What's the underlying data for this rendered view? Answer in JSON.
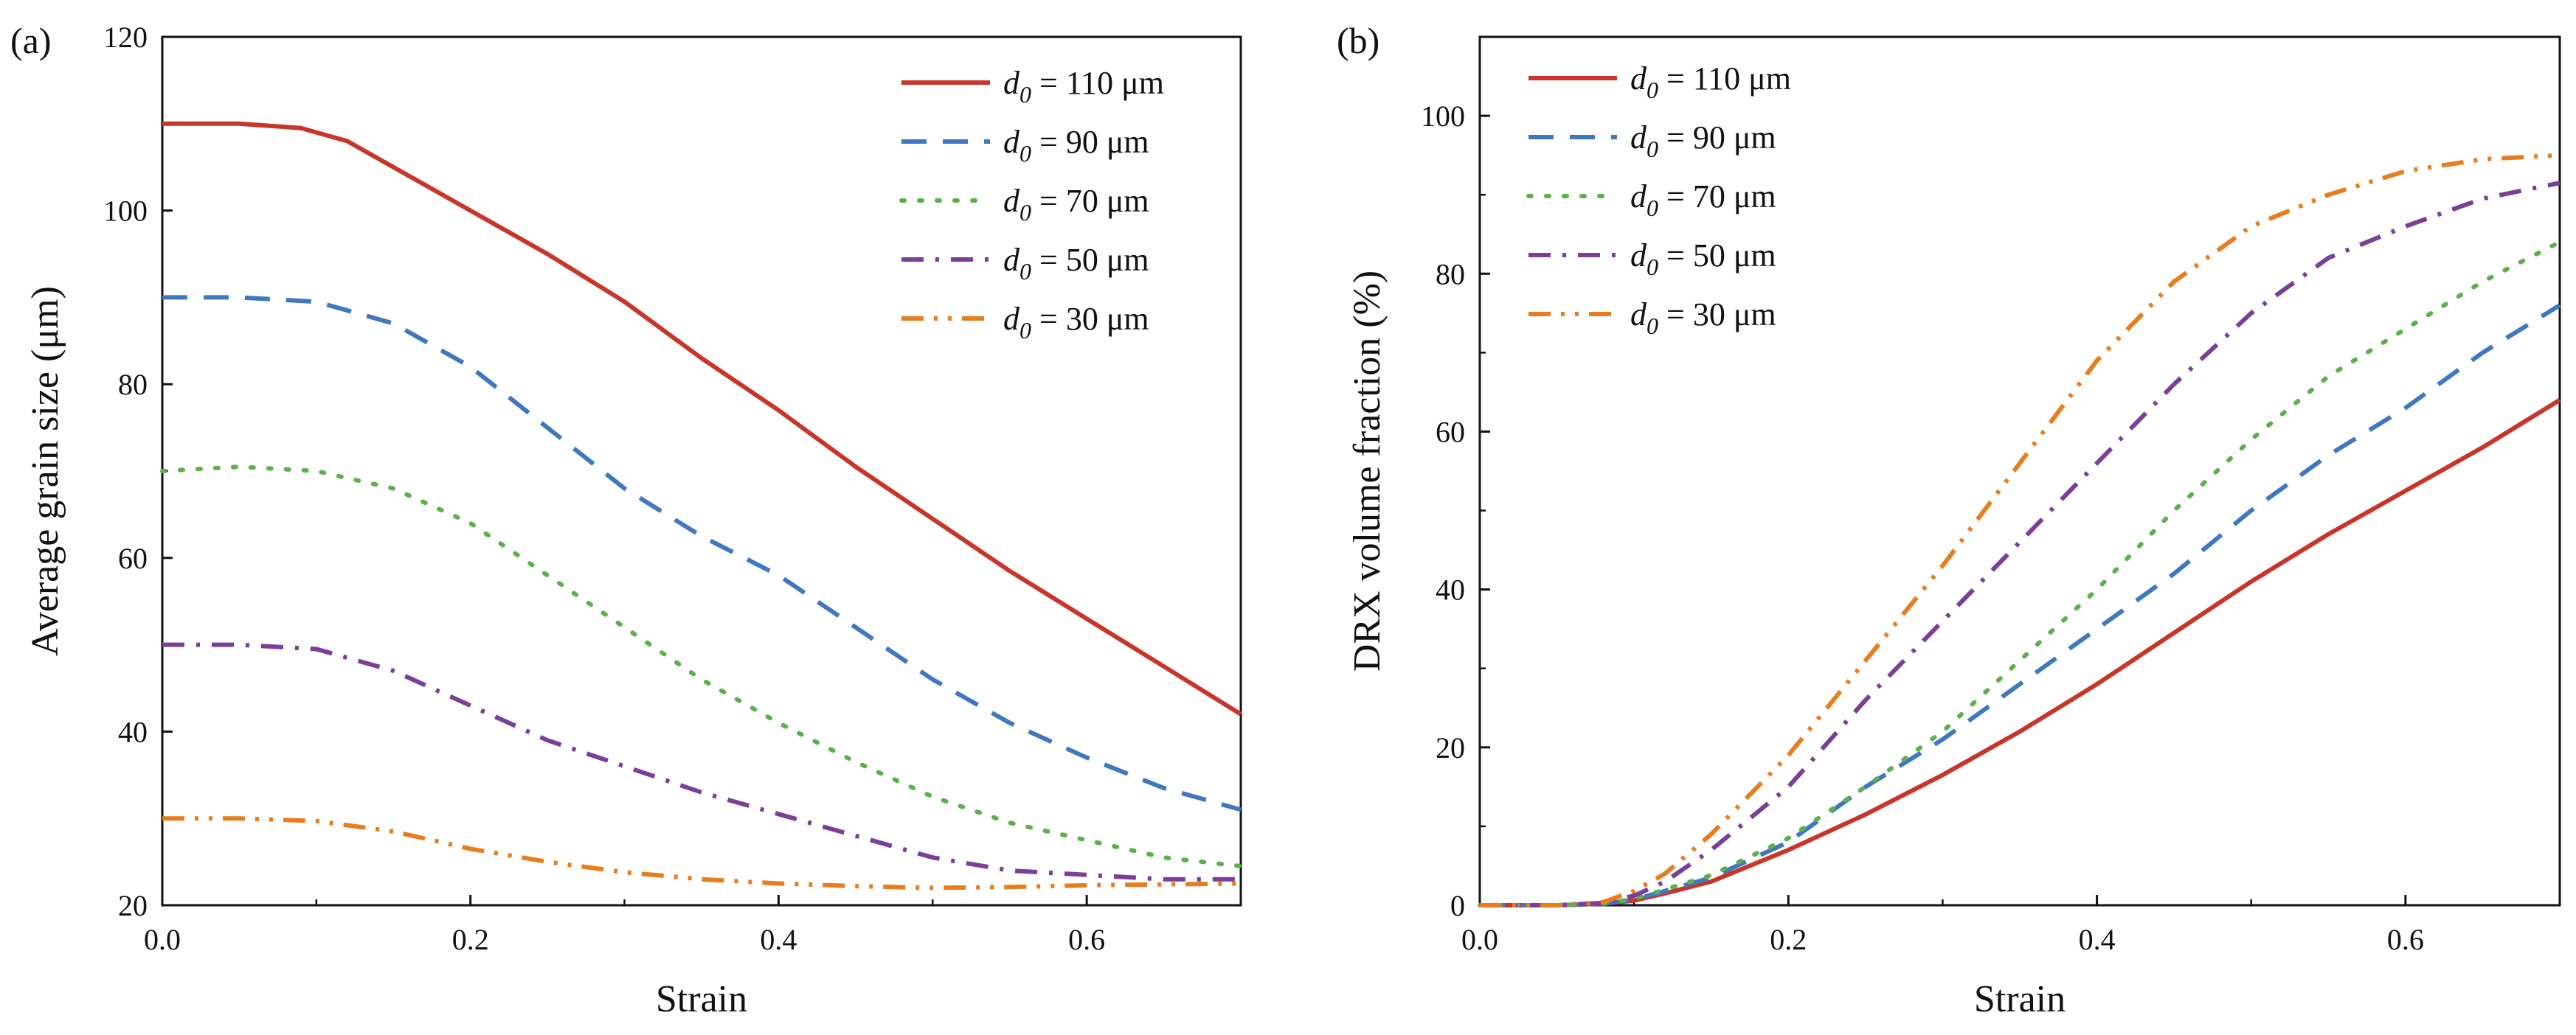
{
  "chart_data": [
    {
      "panel_label": "(a)",
      "type": "line",
      "xlabel": "Strain",
      "ylabel": "Average grain size (μm)",
      "xlim": [
        0,
        0.7
      ],
      "ylim": [
        20,
        120
      ],
      "x_ticks": [
        "0.0",
        "0.2",
        "0.4",
        "0.6"
      ],
      "y_ticks": [
        "20",
        "40",
        "60",
        "80",
        "100",
        "120"
      ],
      "legend_position": "top-right",
      "series": [
        {
          "name": "d0 = 110 μm",
          "legend_sym": "d",
          "legend_sub": "0",
          "legend_rest": " = 110 μm",
          "color": "#c8352b",
          "dash": "solid",
          "x": [
            0.0,
            0.05,
            0.09,
            0.12,
            0.15,
            0.2,
            0.25,
            0.3,
            0.35,
            0.4,
            0.45,
            0.5,
            0.55,
            0.6,
            0.65,
            0.7
          ],
          "y": [
            110,
            110,
            109.5,
            108,
            105,
            100,
            95,
            89.5,
            83,
            77,
            70.5,
            64.5,
            58.5,
            53,
            47.5,
            42
          ]
        },
        {
          "name": "d0 = 90 μm",
          "legend_sym": "d",
          "legend_sub": "0",
          "legend_rest": " = 90 μm",
          "color": "#3f78bf",
          "dash": "dash",
          "x": [
            0.0,
            0.05,
            0.1,
            0.15,
            0.2,
            0.25,
            0.3,
            0.35,
            0.4,
            0.45,
            0.5,
            0.55,
            0.6,
            0.65,
            0.7
          ],
          "y": [
            90,
            90,
            89.5,
            87,
            82,
            75,
            68,
            62.5,
            58,
            52,
            46,
            41,
            37,
            33.5,
            31
          ]
        },
        {
          "name": "d0 = 70 μm",
          "legend_sym": "d",
          "legend_sub": "0",
          "legend_rest": " = 70 μm",
          "color": "#5cb04c",
          "dash": "dot",
          "x": [
            0.0,
            0.05,
            0.1,
            0.15,
            0.2,
            0.25,
            0.3,
            0.35,
            0.4,
            0.45,
            0.5,
            0.55,
            0.6,
            0.65,
            0.7
          ],
          "y": [
            70,
            70.5,
            70,
            68,
            64,
            58,
            52,
            46,
            41,
            36.5,
            32.5,
            29.5,
            27.5,
            25.5,
            24.5
          ]
        },
        {
          "name": "d0 = 50 μm",
          "legend_sym": "d",
          "legend_sub": "0",
          "legend_rest": " = 50 μm",
          "color": "#7a3f98",
          "dash": "dashdot",
          "x": [
            0.0,
            0.05,
            0.1,
            0.15,
            0.2,
            0.25,
            0.3,
            0.35,
            0.4,
            0.45,
            0.5,
            0.55,
            0.6,
            0.65,
            0.7
          ],
          "y": [
            50,
            50,
            49.5,
            47,
            43,
            39,
            36,
            33,
            30.5,
            28,
            25.5,
            24,
            23.5,
            23,
            23
          ]
        },
        {
          "name": "d0 = 30 μm",
          "legend_sym": "d",
          "legend_sub": "0",
          "legend_rest": " = 30 μm",
          "color": "#e87d1e",
          "dash": "dashdotdot",
          "x": [
            0.0,
            0.05,
            0.1,
            0.15,
            0.2,
            0.25,
            0.3,
            0.35,
            0.4,
            0.45,
            0.5,
            0.55,
            0.6,
            0.65,
            0.7
          ],
          "y": [
            30,
            30,
            29.7,
            28.5,
            26.5,
            25,
            23.8,
            23,
            22.5,
            22.2,
            22,
            22.1,
            22.3,
            22.4,
            22.5
          ]
        }
      ]
    },
    {
      "panel_label": "(b)",
      "type": "line",
      "xlabel": "Strain",
      "ylabel": "DRX volume fraction (%)",
      "xlim": [
        0,
        0.7
      ],
      "ylim": [
        0,
        110
      ],
      "x_ticks": [
        "0.0",
        "0.2",
        "0.4",
        "0.6"
      ],
      "y_ticks": [
        "0",
        "20",
        "40",
        "60",
        "80",
        "100"
      ],
      "legend_position": "top-left",
      "series": [
        {
          "name": "d0 = 110 μm",
          "legend_sym": "d",
          "legend_sub": "0",
          "legend_rest": " = 110 μm",
          "color": "#c8352b",
          "dash": "solid",
          "x": [
            0.0,
            0.05,
            0.08,
            0.1,
            0.12,
            0.15,
            0.2,
            0.25,
            0.3,
            0.35,
            0.4,
            0.45,
            0.5,
            0.55,
            0.6,
            0.65,
            0.7
          ],
          "y": [
            0,
            0,
            0.2,
            0.6,
            1.5,
            3,
            7,
            11.5,
            16.5,
            22,
            28,
            34.5,
            41,
            47,
            52.5,
            58,
            64
          ]
        },
        {
          "name": "d0 = 90 μm",
          "legend_sym": "d",
          "legend_sub": "0",
          "legend_rest": " = 90 μm",
          "color": "#3f78bf",
          "dash": "dash",
          "x": [
            0.0,
            0.05,
            0.08,
            0.1,
            0.12,
            0.15,
            0.2,
            0.25,
            0.3,
            0.35,
            0.4,
            0.45,
            0.5,
            0.55,
            0.6,
            0.65,
            0.7
          ],
          "y": [
            0,
            0,
            0.2,
            0.7,
            1.8,
            3.5,
            8,
            15,
            21,
            28,
            35,
            42,
            50,
            57,
            63,
            70,
            76
          ]
        },
        {
          "name": "d0 = 70 μm",
          "legend_sym": "d",
          "legend_sub": "0",
          "legend_rest": " = 70 μm",
          "color": "#5cb04c",
          "dash": "dot",
          "x": [
            0.0,
            0.05,
            0.08,
            0.1,
            0.12,
            0.15,
            0.2,
            0.25,
            0.3,
            0.35,
            0.4,
            0.45,
            0.5,
            0.55,
            0.6,
            0.65,
            0.7
          ],
          "y": [
            0,
            0,
            0.2,
            0.8,
            2,
            3.8,
            8.5,
            15,
            22,
            31,
            40,
            50,
            59,
            67,
            73,
            79,
            84
          ]
        },
        {
          "name": "d0 = 50 μm",
          "legend_sym": "d",
          "legend_sub": "0",
          "legend_rest": " = 50 μm",
          "color": "#7a3f98",
          "dash": "dashdot",
          "x": [
            0.0,
            0.05,
            0.08,
            0.1,
            0.12,
            0.15,
            0.2,
            0.25,
            0.3,
            0.35,
            0.4,
            0.45,
            0.5,
            0.55,
            0.6,
            0.65,
            0.7
          ],
          "y": [
            0,
            0,
            0.3,
            1.2,
            3,
            7,
            15,
            26,
            36,
            46,
            56,
            66,
            75,
            82,
            86,
            89.5,
            91.5
          ]
        },
        {
          "name": "d0 = 30 μm",
          "legend_sym": "d",
          "legend_sub": "0",
          "legend_rest": " = 30 μm",
          "color": "#e87d1e",
          "dash": "dashdotdot",
          "x": [
            0.0,
            0.05,
            0.08,
            0.1,
            0.12,
            0.15,
            0.2,
            0.25,
            0.3,
            0.35,
            0.4,
            0.45,
            0.5,
            0.55,
            0.6,
            0.65,
            0.7
          ],
          "y": [
            0,
            0,
            0.4,
            1.8,
            4,
            9,
            19,
            31,
            43,
            56,
            69,
            79,
            86,
            90,
            93,
            94.5,
            95
          ]
        }
      ]
    }
  ]
}
